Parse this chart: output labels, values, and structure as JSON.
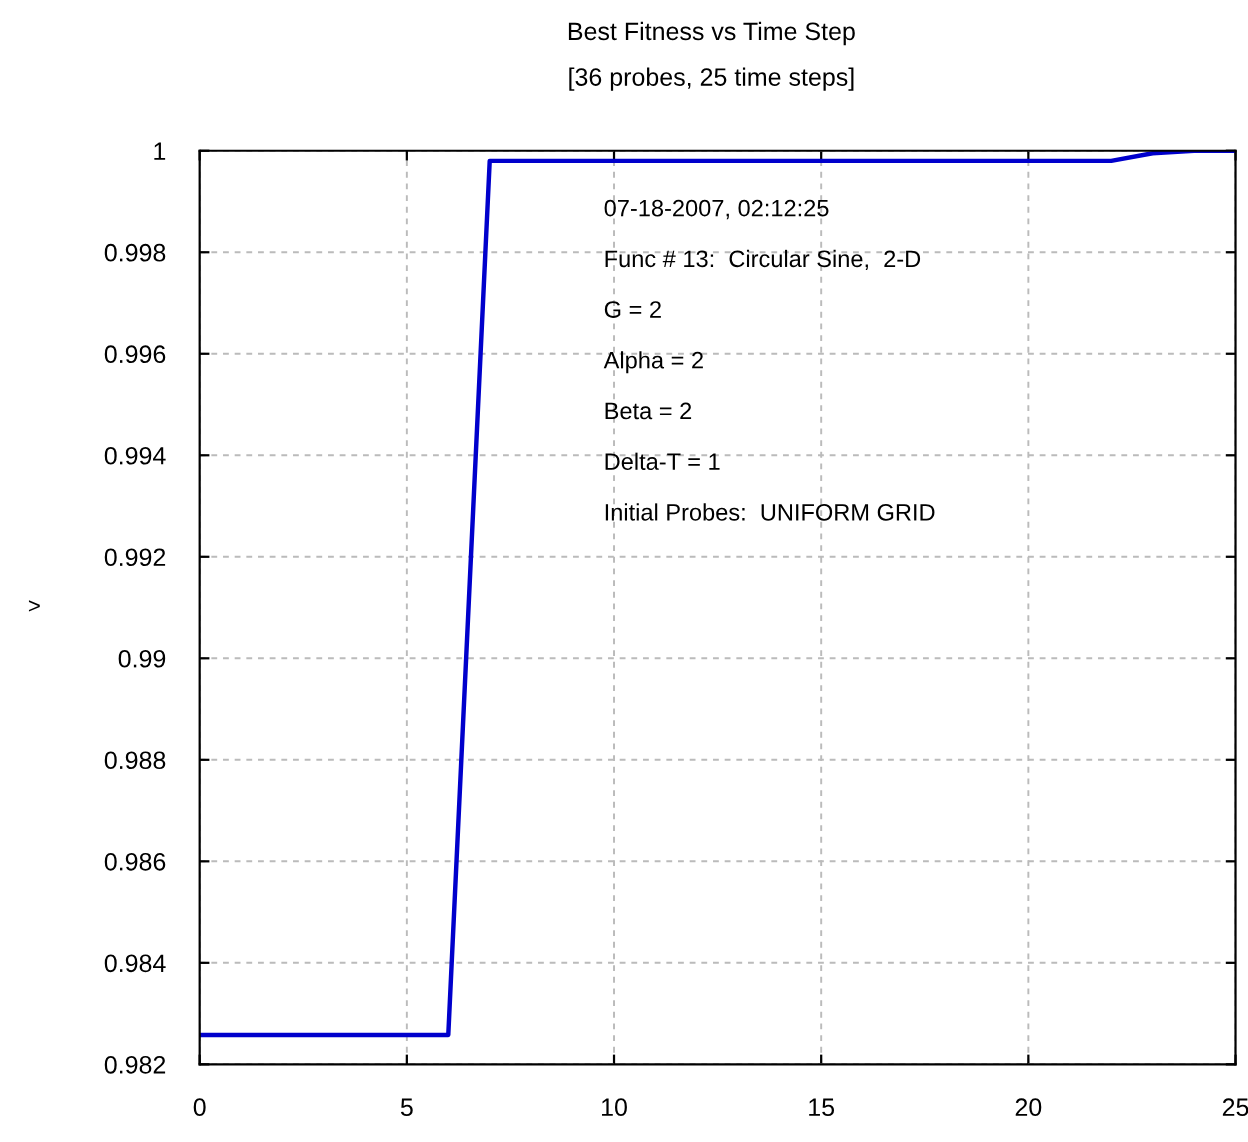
{
  "chart_data": {
    "type": "line",
    "title": "Best Fitness vs Time Step",
    "subtitle": "[36 probes, 25 time steps]",
    "ylabel": ">",
    "x": [
      0,
      1,
      2,
      3,
      4,
      5,
      6,
      7,
      8,
      9,
      10,
      11,
      12,
      13,
      14,
      15,
      16,
      17,
      18,
      19,
      20,
      21,
      22,
      23,
      24,
      25
    ],
    "series": [
      {
        "color": "#0000cc",
        "values": [
          0.98258,
          0.98258,
          0.98258,
          0.98258,
          0.98258,
          0.98258,
          0.98258,
          0.9998,
          0.9998,
          0.9998,
          0.9998,
          0.9998,
          0.9998,
          0.9998,
          0.9998,
          0.9998,
          0.9998,
          0.9998,
          0.9998,
          0.9998,
          0.9998,
          0.9998,
          0.9998,
          0.99995,
          1.0,
          1.0
        ]
      }
    ],
    "xlim": [
      0,
      25
    ],
    "xticks": [
      0,
      5,
      10,
      15,
      20,
      25
    ],
    "ylim": [
      0.982,
      1
    ],
    "yticks": [
      0.982,
      0.984,
      0.986,
      0.988,
      0.99,
      0.992,
      0.994,
      0.996,
      0.998,
      1
    ],
    "grid": true,
    "marker": "none",
    "line_style": "solid",
    "annotations": [
      "07-18-2007, 02:12:25",
      "Func # 13:  Circular Sine,  2-D",
      "G = 2",
      "Alpha = 2",
      "Beta = 2",
      "Delta-T = 1",
      "Initial Probes:  UNIFORM GRID"
    ]
  }
}
